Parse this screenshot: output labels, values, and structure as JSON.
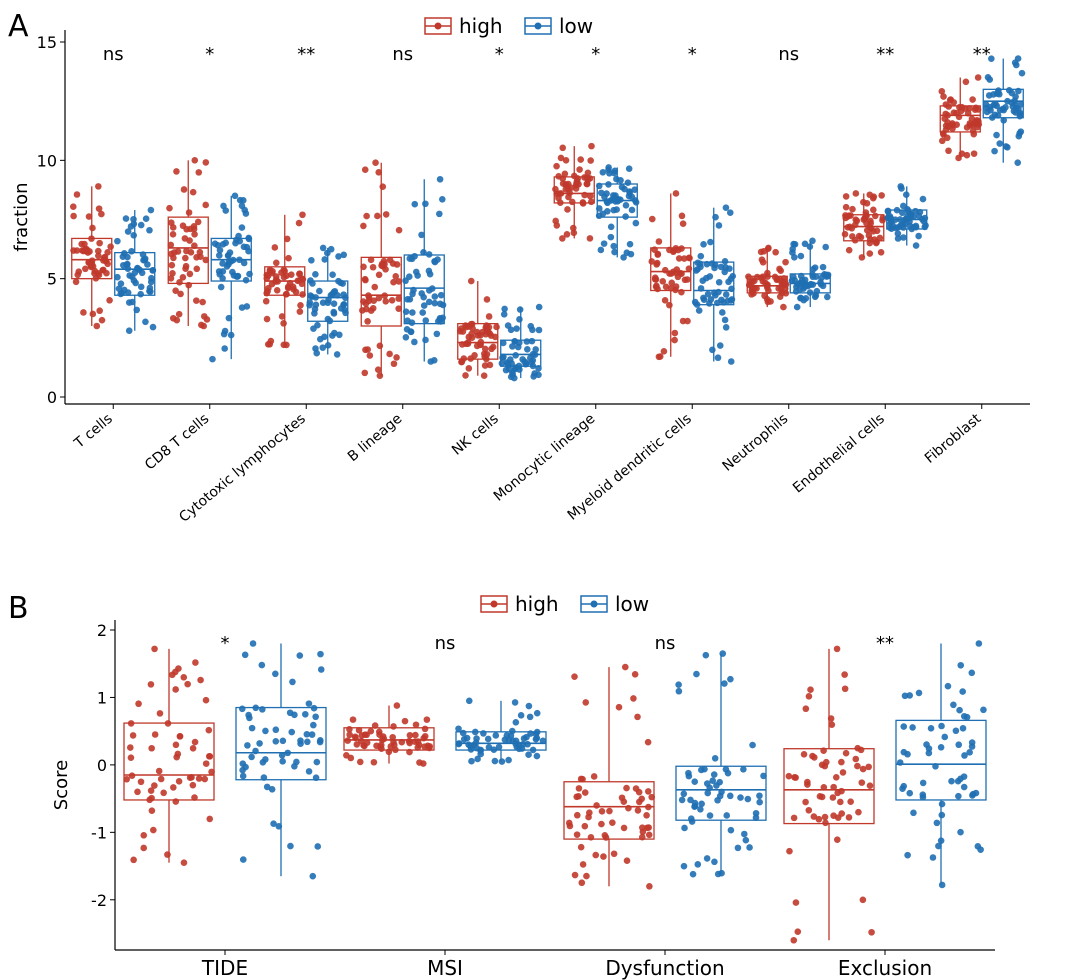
{
  "chart_data": [
    {
      "panel": "A",
      "type": "box",
      "ylabel": "fraction",
      "ylim": [
        0,
        15
      ],
      "yticks": [
        0,
        5,
        10,
        15
      ],
      "legend": [
        "high",
        "low"
      ],
      "legend_position": "top",
      "colors": {
        "high": "#c0392b",
        "low": "#1f6fb2"
      },
      "categories": [
        "T cells",
        "CD8 T cells",
        "Cytotoxic lymphocytes",
        "B lineage",
        "NK cells",
        "Monocytic lineage",
        "Myeloid dendritic cells",
        "Neutrophils",
        "Endothelial cells",
        "Fibroblast"
      ],
      "significance": [
        "ns",
        "*",
        "**",
        "ns",
        "*",
        "*",
        "*",
        "ns",
        "**",
        "**"
      ],
      "series": [
        {
          "name": "high",
          "boxes": [
            {
              "min": 3.0,
              "q1": 5.0,
              "median": 5.8,
              "q3": 6.7,
              "max": 8.9
            },
            {
              "min": 3.0,
              "q1": 4.8,
              "median": 6.3,
              "q3": 7.6,
              "max": 10.0
            },
            {
              "min": 2.2,
              "q1": 4.3,
              "median": 4.9,
              "q3": 5.5,
              "max": 7.7
            },
            {
              "min": 0.9,
              "q1": 3.0,
              "median": 4.3,
              "q3": 5.9,
              "max": 9.9
            },
            {
              "min": 0.9,
              "q1": 1.6,
              "median": 2.3,
              "q3": 3.1,
              "max": 4.9
            },
            {
              "min": 6.7,
              "q1": 8.2,
              "median": 8.6,
              "q3": 9.3,
              "max": 10.6
            },
            {
              "min": 1.7,
              "q1": 4.5,
              "median": 5.3,
              "q3": 6.3,
              "max": 8.6
            },
            {
              "min": 3.8,
              "q1": 4.4,
              "median": 4.7,
              "q3": 5.1,
              "max": 6.3
            },
            {
              "min": 5.9,
              "q1": 6.6,
              "median": 7.2,
              "q3": 7.7,
              "max": 8.6
            },
            {
              "min": 10.1,
              "q1": 11.2,
              "median": 11.9,
              "q3": 12.3,
              "max": 13.5
            }
          ]
        },
        {
          "name": "low",
          "boxes": [
            {
              "min": 2.8,
              "q1": 4.3,
              "median": 5.4,
              "q3": 6.1,
              "max": 7.9
            },
            {
              "min": 1.6,
              "q1": 4.9,
              "median": 5.8,
              "q3": 6.7,
              "max": 8.5
            },
            {
              "min": 1.8,
              "q1": 3.2,
              "median": 4.2,
              "q3": 4.9,
              "max": 6.3
            },
            {
              "min": 1.5,
              "q1": 3.1,
              "median": 4.6,
              "q3": 6.0,
              "max": 9.2
            },
            {
              "min": 0.8,
              "q1": 1.3,
              "median": 1.8,
              "q3": 2.4,
              "max": 3.8
            },
            {
              "min": 5.9,
              "q1": 7.6,
              "median": 8.3,
              "q3": 9.0,
              "max": 9.7
            },
            {
              "min": 1.5,
              "q1": 3.9,
              "median": 4.5,
              "q3": 5.7,
              "max": 8.0
            },
            {
              "min": 3.8,
              "q1": 4.4,
              "median": 4.8,
              "q3": 5.2,
              "max": 6.6
            },
            {
              "min": 6.4,
              "q1": 7.1,
              "median": 7.5,
              "q3": 7.9,
              "max": 8.9
            },
            {
              "min": 9.9,
              "q1": 11.8,
              "median": 12.5,
              "q3": 13.0,
              "max": 14.3
            }
          ]
        }
      ]
    },
    {
      "panel": "B",
      "type": "box",
      "ylabel": "Score",
      "ylim": [
        -2.7,
        2.0
      ],
      "yticks": [
        -2,
        -1,
        0,
        1,
        2
      ],
      "legend": [
        "high",
        "low"
      ],
      "legend_position": "top",
      "colors": {
        "high": "#c0392b",
        "low": "#1f6fb2"
      },
      "categories": [
        "TIDE",
        "MSI",
        "Dysfunction",
        "Exclusion"
      ],
      "significance": [
        "*",
        "ns",
        "ns",
        "**"
      ],
      "series": [
        {
          "name": "high",
          "boxes": [
            {
              "min": -1.45,
              "q1": -0.52,
              "median": -0.15,
              "q3": 0.62,
              "max": 1.72
            },
            {
              "min": 0.02,
              "q1": 0.22,
              "median": 0.37,
              "q3": 0.55,
              "max": 0.88
            },
            {
              "min": -1.8,
              "q1": -1.1,
              "median": -0.62,
              "q3": -0.25,
              "max": 1.45
            },
            {
              "min": -2.6,
              "q1": -0.87,
              "median": -0.37,
              "q3": 0.24,
              "max": 1.72
            }
          ]
        },
        {
          "name": "low",
          "boxes": [
            {
              "min": -1.65,
              "q1": -0.22,
              "median": 0.18,
              "q3": 0.85,
              "max": 1.8
            },
            {
              "min": 0.05,
              "q1": 0.22,
              "median": 0.32,
              "q3": 0.49,
              "max": 0.95
            },
            {
              "min": -1.62,
              "q1": -0.82,
              "median": -0.37,
              "q3": -0.02,
              "max": 1.65
            },
            {
              "min": -1.78,
              "q1": -0.52,
              "median": 0.01,
              "q3": 0.66,
              "max": 1.8
            }
          ]
        }
      ]
    }
  ]
}
